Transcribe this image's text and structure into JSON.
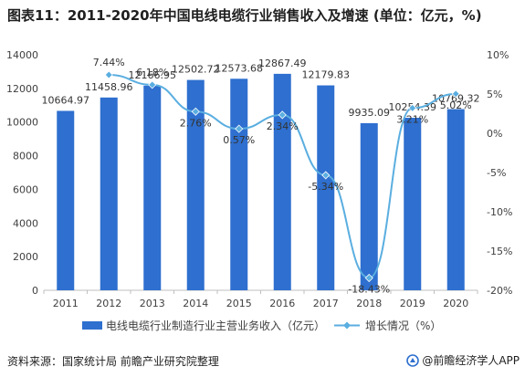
{
  "title": "图表11：2011-2020年中国电线电缆行业销售收入及增速 (单位：亿元，%)",
  "source": "资料来源：国家统计局 前瞻产业研究院整理",
  "brand": "@前瞻经济学人APP",
  "colors": {
    "bar": "#2e6fcf",
    "line": "#5aaee0",
    "axis": "#bfbfbf",
    "text": "#404040",
    "grid": "#e0e0e0"
  },
  "chart_data": {
    "type": "bar",
    "categories": [
      "2011",
      "2012",
      "2013",
      "2014",
      "2015",
      "2016",
      "2017",
      "2018",
      "2019",
      "2020"
    ],
    "series": [
      {
        "name": "电线电缆行业制造行业主营业务收入（亿元）",
        "type": "bar",
        "axis": "left",
        "values": [
          10664.97,
          11458.96,
          12166.95,
          12502.72,
          12573.68,
          12867.49,
          12179.83,
          9935.09,
          10254.39,
          10769.32
        ],
        "labels": [
          "10664.97",
          "11458.96",
          "12166.95",
          "12502.72",
          "12573.68",
          "12867.49",
          "12179.83",
          "9935.09",
          "10254.39",
          "10769.32"
        ]
      },
      {
        "name": "增长情况（%）",
        "type": "line",
        "axis": "right",
        "values": [
          null,
          7.44,
          6.18,
          2.76,
          0.57,
          2.34,
          -5.34,
          -18.43,
          3.21,
          5.02
        ],
        "labels": [
          "",
          "7.44%",
          "6.18%",
          "2.76%",
          "0.57%",
          "2.34%",
          "-5.34%",
          "-18.43%",
          "3.21%",
          "5.02%"
        ]
      }
    ],
    "ylim": [
      0,
      14000
    ],
    "yticks": [
      "0",
      "2000",
      "4000",
      "6000",
      "8000",
      "10000",
      "12000",
      "14000"
    ],
    "y2lim": [
      -20,
      10
    ],
    "y2ticks": [
      "-20%",
      "-15%",
      "-10%",
      "-5%",
      "0%",
      "5%",
      "10%"
    ],
    "grid": false,
    "legend": "bottom"
  }
}
